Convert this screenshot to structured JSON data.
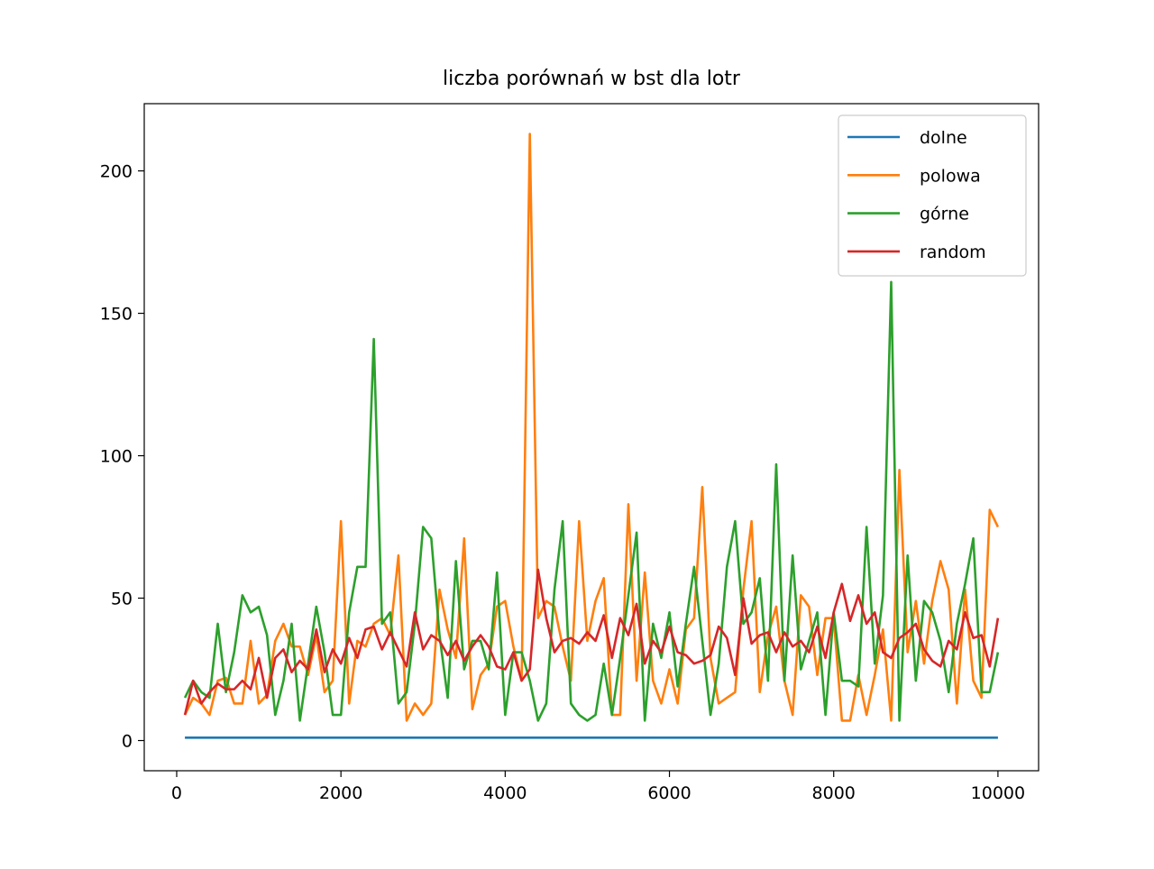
{
  "chart_data": {
    "type": "line",
    "title": "liczba porównań w bst dla lotr",
    "x": [
      100,
      200,
      300,
      400,
      500,
      600,
      700,
      800,
      900,
      1000,
      1100,
      1200,
      1300,
      1400,
      1500,
      1600,
      1700,
      1800,
      1900,
      2000,
      2100,
      2200,
      2300,
      2400,
      2500,
      2600,
      2700,
      2800,
      2900,
      3000,
      3100,
      3200,
      3300,
      3400,
      3500,
      3600,
      3700,
      3800,
      3900,
      4000,
      4100,
      4200,
      4300,
      4400,
      4500,
      4600,
      4700,
      4800,
      4900,
      5000,
      5100,
      5200,
      5300,
      5400,
      5500,
      5600,
      5700,
      5800,
      5900,
      6000,
      6100,
      6200,
      6300,
      6400,
      6500,
      6600,
      6700,
      6800,
      6900,
      7000,
      7100,
      7200,
      7300,
      7400,
      7500,
      7600,
      7700,
      7800,
      7900,
      8000,
      8100,
      8200,
      8300,
      8400,
      8500,
      8600,
      8700,
      8800,
      8900,
      9000,
      9100,
      9200,
      9300,
      9400,
      9500,
      9600,
      9700,
      9800,
      9900,
      10000
    ],
    "series": [
      {
        "name": "dolne",
        "color": "#1f77b4",
        "values": [
          1,
          1,
          1,
          1,
          1,
          1,
          1,
          1,
          1,
          1,
          1,
          1,
          1,
          1,
          1,
          1,
          1,
          1,
          1,
          1,
          1,
          1,
          1,
          1,
          1,
          1,
          1,
          1,
          1,
          1,
          1,
          1,
          1,
          1,
          1,
          1,
          1,
          1,
          1,
          1,
          1,
          1,
          1,
          1,
          1,
          1,
          1,
          1,
          1,
          1,
          1,
          1,
          1,
          1,
          1,
          1,
          1,
          1,
          1,
          1,
          1,
          1,
          1,
          1,
          1,
          1,
          1,
          1,
          1,
          1,
          1,
          1,
          1,
          1,
          1,
          1,
          1,
          1,
          1,
          1,
          1,
          1,
          1,
          1,
          1,
          1,
          1,
          1,
          1,
          1,
          1,
          1,
          1,
          1,
          1,
          1,
          1,
          1,
          1,
          1
        ]
      },
      {
        "name": "polowa",
        "color": "#ff7f0e",
        "values": [
          9,
          15,
          13,
          9,
          21,
          22,
          13,
          13,
          35,
          13,
          16,
          35,
          41,
          33,
          33,
          23,
          37,
          17,
          21,
          77,
          13,
          35,
          33,
          41,
          43,
          37,
          65,
          7,
          13,
          9,
          13,
          53,
          39,
          29,
          71,
          11,
          23,
          27,
          47,
          49,
          33,
          21,
          213,
          43,
          49,
          47,
          33,
          21,
          77,
          35,
          49,
          57,
          9,
          9,
          83,
          21,
          59,
          21,
          13,
          25,
          13,
          39,
          43,
          89,
          29,
          13,
          15,
          17,
          53,
          77,
          17,
          37,
          47,
          21,
          9,
          51,
          47,
          23,
          43,
          43,
          7,
          7,
          23,
          9,
          23,
          39,
          7,
          95,
          31,
          49,
          27,
          49,
          63,
          53,
          13,
          53,
          21,
          15,
          81,
          75
        ]
      },
      {
        "name": "górne",
        "color": "#2ca02c",
        "values": [
          15,
          21,
          17,
          15,
          41,
          17,
          31,
          51,
          45,
          47,
          37,
          9,
          21,
          41,
          7,
          27,
          47,
          31,
          9,
          9,
          45,
          61,
          61,
          141,
          41,
          45,
          13,
          17,
          41,
          75,
          71,
          37,
          15,
          63,
          25,
          35,
          35,
          25,
          59,
          9,
          31,
          31,
          21,
          7,
          13,
          53,
          77,
          13,
          9,
          7,
          9,
          27,
          9,
          29,
          51,
          73,
          7,
          41,
          29,
          45,
          19,
          41,
          61,
          35,
          9,
          27,
          61,
          77,
          41,
          45,
          57,
          21,
          97,
          21,
          65,
          25,
          35,
          45,
          9,
          45,
          21,
          21,
          19,
          75,
          27,
          51,
          161,
          7,
          65,
          21,
          49,
          45,
          35,
          17,
          41,
          55,
          71,
          17,
          17,
          31
        ]
      },
      {
        "name": "random",
        "color": "#d62728",
        "values": [
          9,
          21,
          13,
          17,
          20,
          18,
          18,
          21,
          18,
          29,
          15,
          29,
          32,
          24,
          28,
          25,
          39,
          24,
          32,
          27,
          36,
          29,
          39,
          40,
          32,
          38,
          32,
          26,
          45,
          32,
          37,
          35,
          30,
          35,
          28,
          33,
          37,
          33,
          26,
          25,
          31,
          21,
          25,
          60,
          43,
          31,
          35,
          36,
          34,
          38,
          35,
          44,
          29,
          43,
          37,
          48,
          27,
          35,
          31,
          40,
          31,
          30,
          27,
          28,
          30,
          40,
          36,
          23,
          50,
          34,
          37,
          38,
          31,
          38,
          33,
          35,
          31,
          40,
          29,
          45,
          55,
          42,
          51,
          41,
          45,
          31,
          29,
          36,
          38,
          41,
          32,
          28,
          26,
          35,
          32,
          45,
          36,
          37,
          26,
          43
        ]
      }
    ],
    "xlim": [
      -395,
      10495
    ],
    "ylim": [
      -10.6,
      223.6
    ],
    "xticks": [
      0,
      2000,
      4000,
      6000,
      8000,
      10000
    ],
    "yticks": [
      0,
      50,
      100,
      150,
      200
    ],
    "legend": "upper right"
  }
}
